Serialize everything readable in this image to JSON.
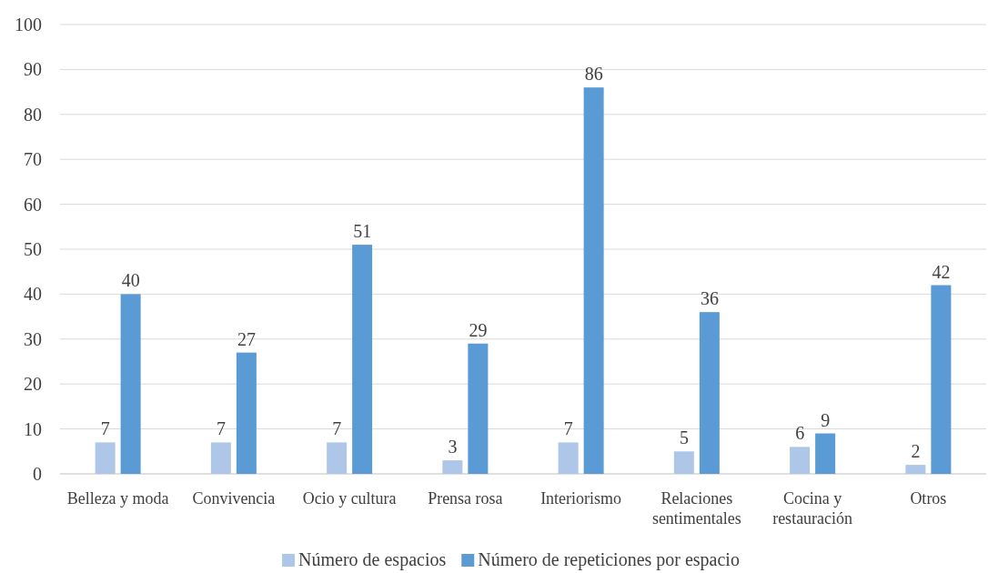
{
  "chart_data": {
    "type": "bar",
    "categories": [
      "Belleza y moda",
      "Convivencia",
      "Ocio y cultura",
      "Prensa rosa",
      "Interiorismo",
      "Relaciones sentimentales",
      "Cocina y restauración",
      "Otros"
    ],
    "series": [
      {
        "name": "Número de espacios",
        "color": "#aec6e7",
        "values": [
          7,
          7,
          7,
          3,
          7,
          5,
          6,
          2
        ]
      },
      {
        "name": "Número de repeticiones por espacio",
        "color": "#5b9bd5",
        "values": [
          40,
          27,
          51,
          29,
          86,
          36,
          9,
          42
        ]
      }
    ],
    "ylim": [
      0,
      100
    ],
    "yticks": [
      0,
      10,
      20,
      30,
      40,
      50,
      60,
      70,
      80,
      90,
      100
    ],
    "grid": "y",
    "legend": "bottom",
    "data_labels": true
  }
}
